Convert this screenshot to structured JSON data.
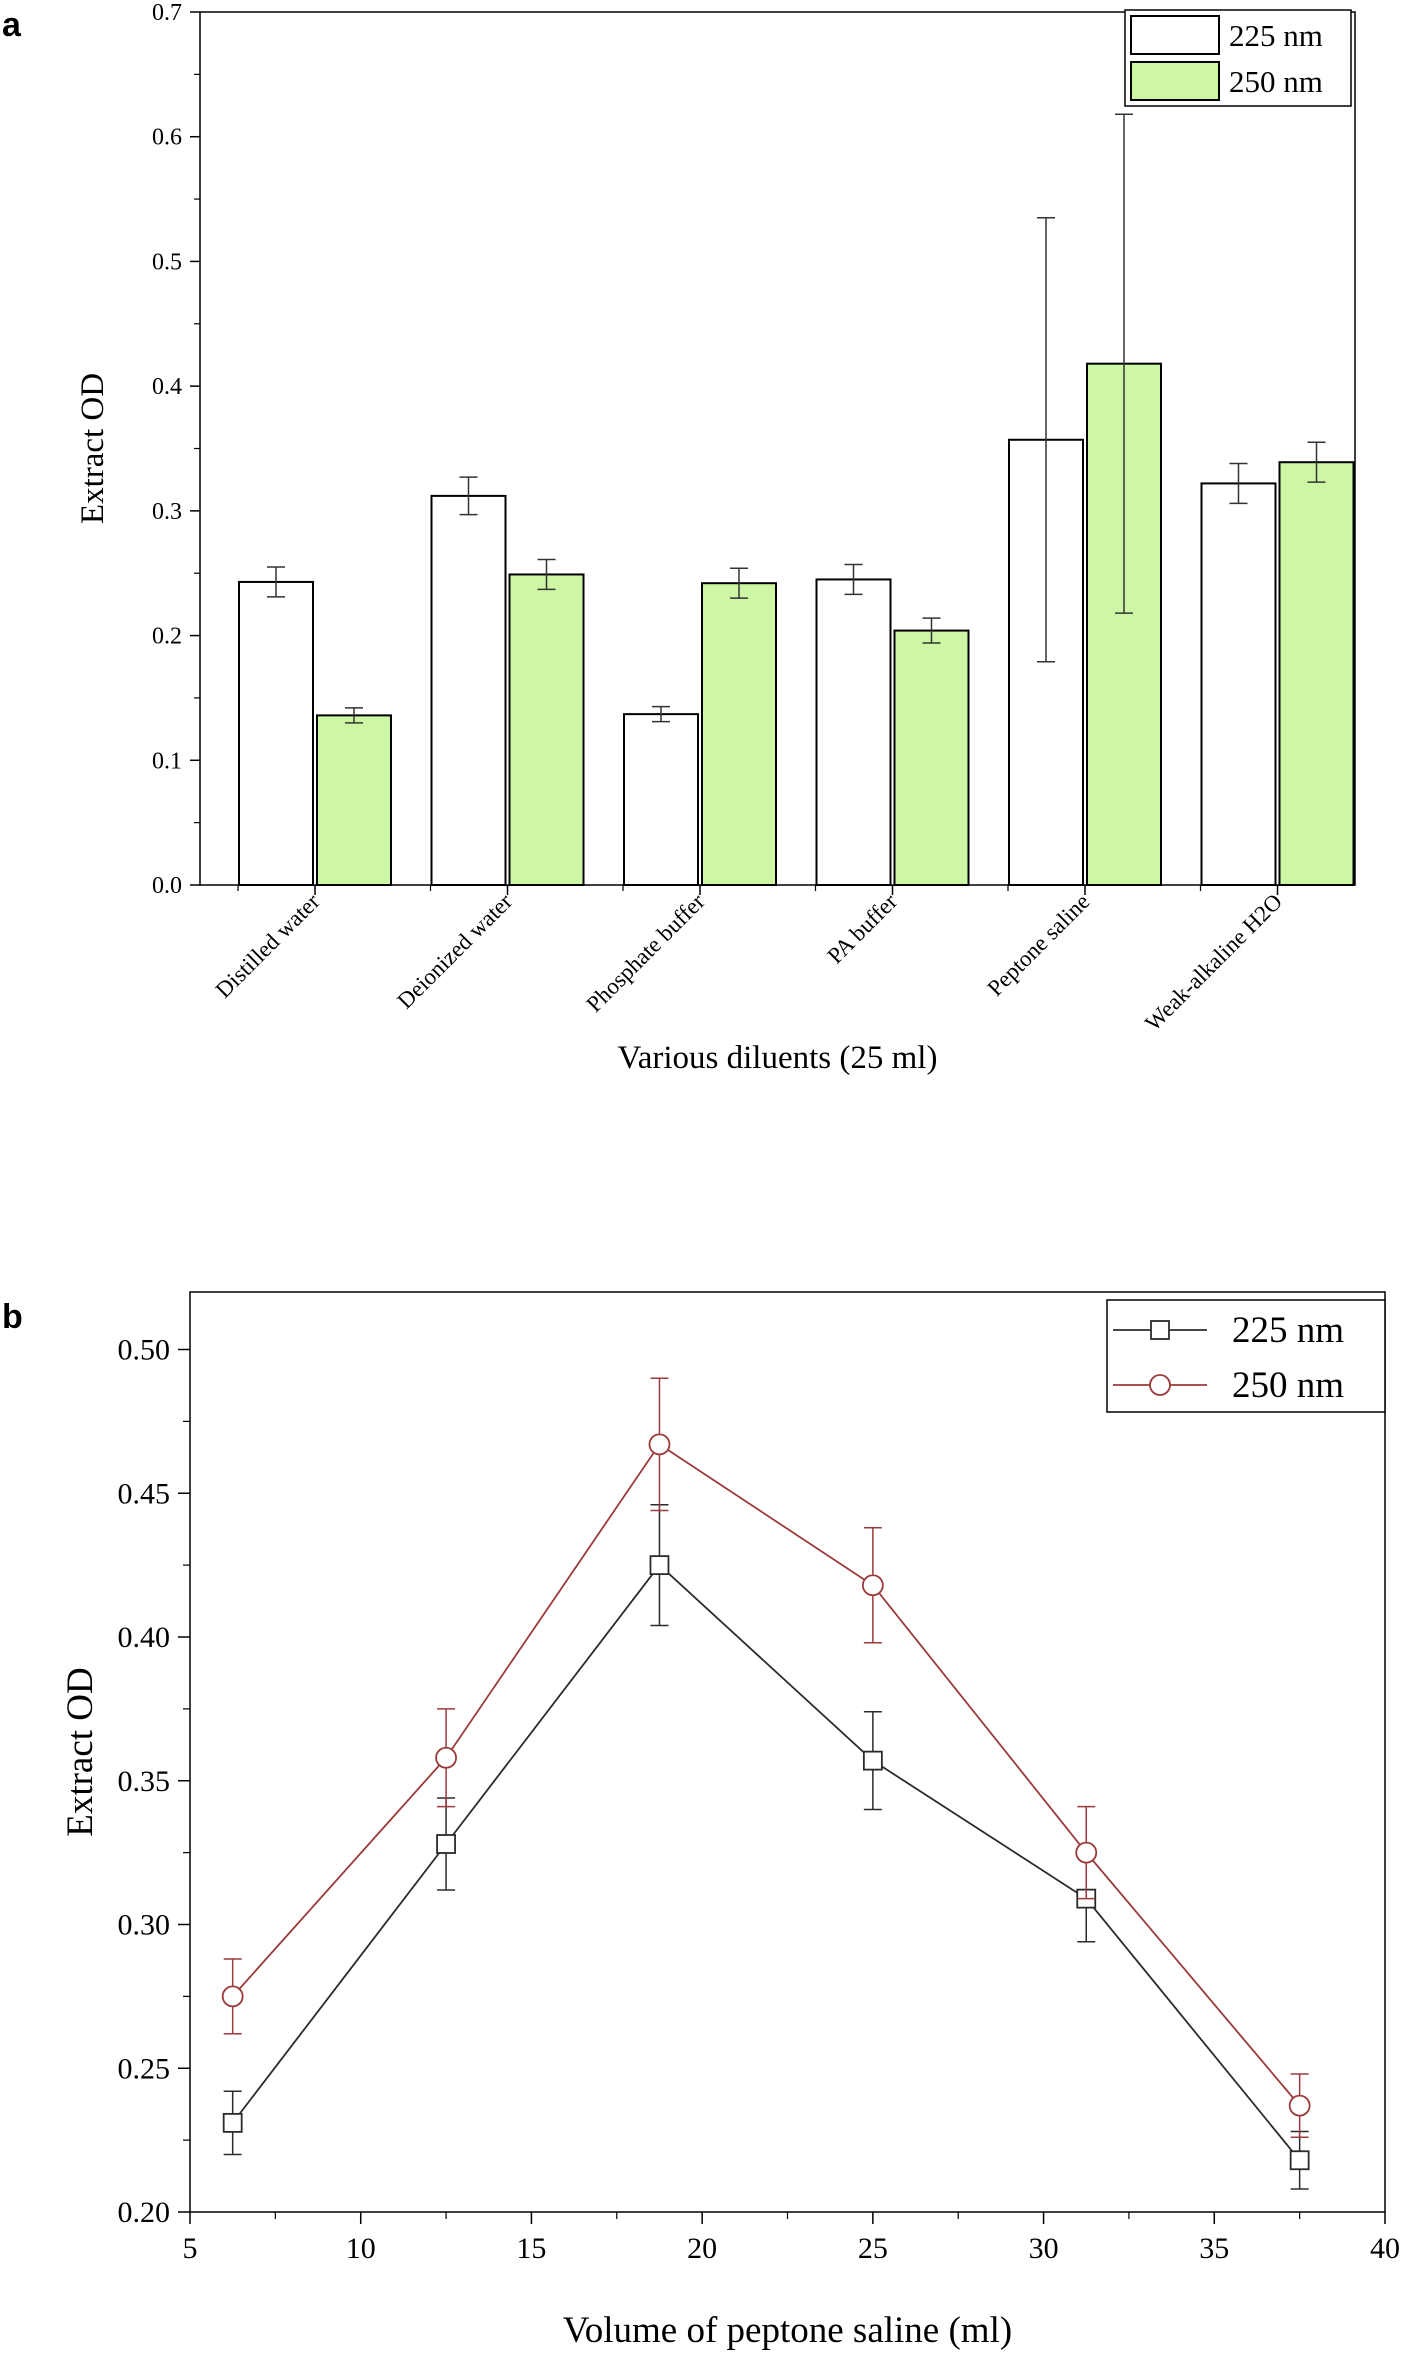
{
  "chart_data": [
    {
      "panel": "a",
      "type": "bar",
      "title": "",
      "xlabel": "Various diluents (25 ml)",
      "ylabel": "Extract OD",
      "ylim": [
        0,
        0.7
      ],
      "yticks": [
        "0.0",
        "0.1",
        "0.2",
        "0.3",
        "0.4",
        "0.5",
        "0.6",
        "0.7"
      ],
      "categories": [
        "Distilled water",
        "Deionized water",
        "Phosphate buffer",
        "PA buffer",
        "Peptone saline",
        "Weak-alkaline H2O"
      ],
      "series": [
        {
          "name": "225 nm",
          "color": "#ffffff",
          "values": [
            0.243,
            0.312,
            0.137,
            0.245,
            0.357,
            0.322
          ],
          "errors": [
            0.012,
            0.015,
            0.006,
            0.012,
            0.178,
            0.016
          ]
        },
        {
          "name": "250 nm",
          "color": "#cdf7a5",
          "values": [
            0.136,
            0.249,
            0.242,
            0.204,
            0.418,
            0.339
          ],
          "errors": [
            0.006,
            0.012,
            0.012,
            0.01,
            0.2,
            0.016
          ]
        }
      ],
      "legend_position": "top-right"
    },
    {
      "panel": "b",
      "type": "line",
      "title": "",
      "xlabel": "Volume of peptone saline (ml)",
      "ylabel": "Extract OD",
      "xlim": [
        5,
        40
      ],
      "ylim": [
        0.2,
        0.52
      ],
      "xticks": [
        "5",
        "10",
        "15",
        "20",
        "25",
        "30",
        "35",
        "40"
      ],
      "yticks": [
        "0.20",
        "0.25",
        "0.30",
        "0.35",
        "0.40",
        "0.45",
        "0.50"
      ],
      "x": [
        6.25,
        12.5,
        18.75,
        25,
        31.25,
        37.5
      ],
      "series": [
        {
          "name": "225 nm",
          "color": "#2b2b2b",
          "marker": "square",
          "values": [
            0.231,
            0.328,
            0.425,
            0.357,
            0.309,
            0.218
          ],
          "errors": [
            0.011,
            0.016,
            0.021,
            0.017,
            0.015,
            0.01
          ]
        },
        {
          "name": "250 nm",
          "color": "#9b3a3a",
          "marker": "circle",
          "values": [
            0.275,
            0.358,
            0.467,
            0.418,
            0.325,
            0.237
          ],
          "errors": [
            0.013,
            0.017,
            0.023,
            0.02,
            0.016,
            0.011
          ]
        }
      ],
      "legend_position": "top-right"
    }
  ],
  "labels": {
    "panel_a": "a",
    "panel_b": "b"
  }
}
